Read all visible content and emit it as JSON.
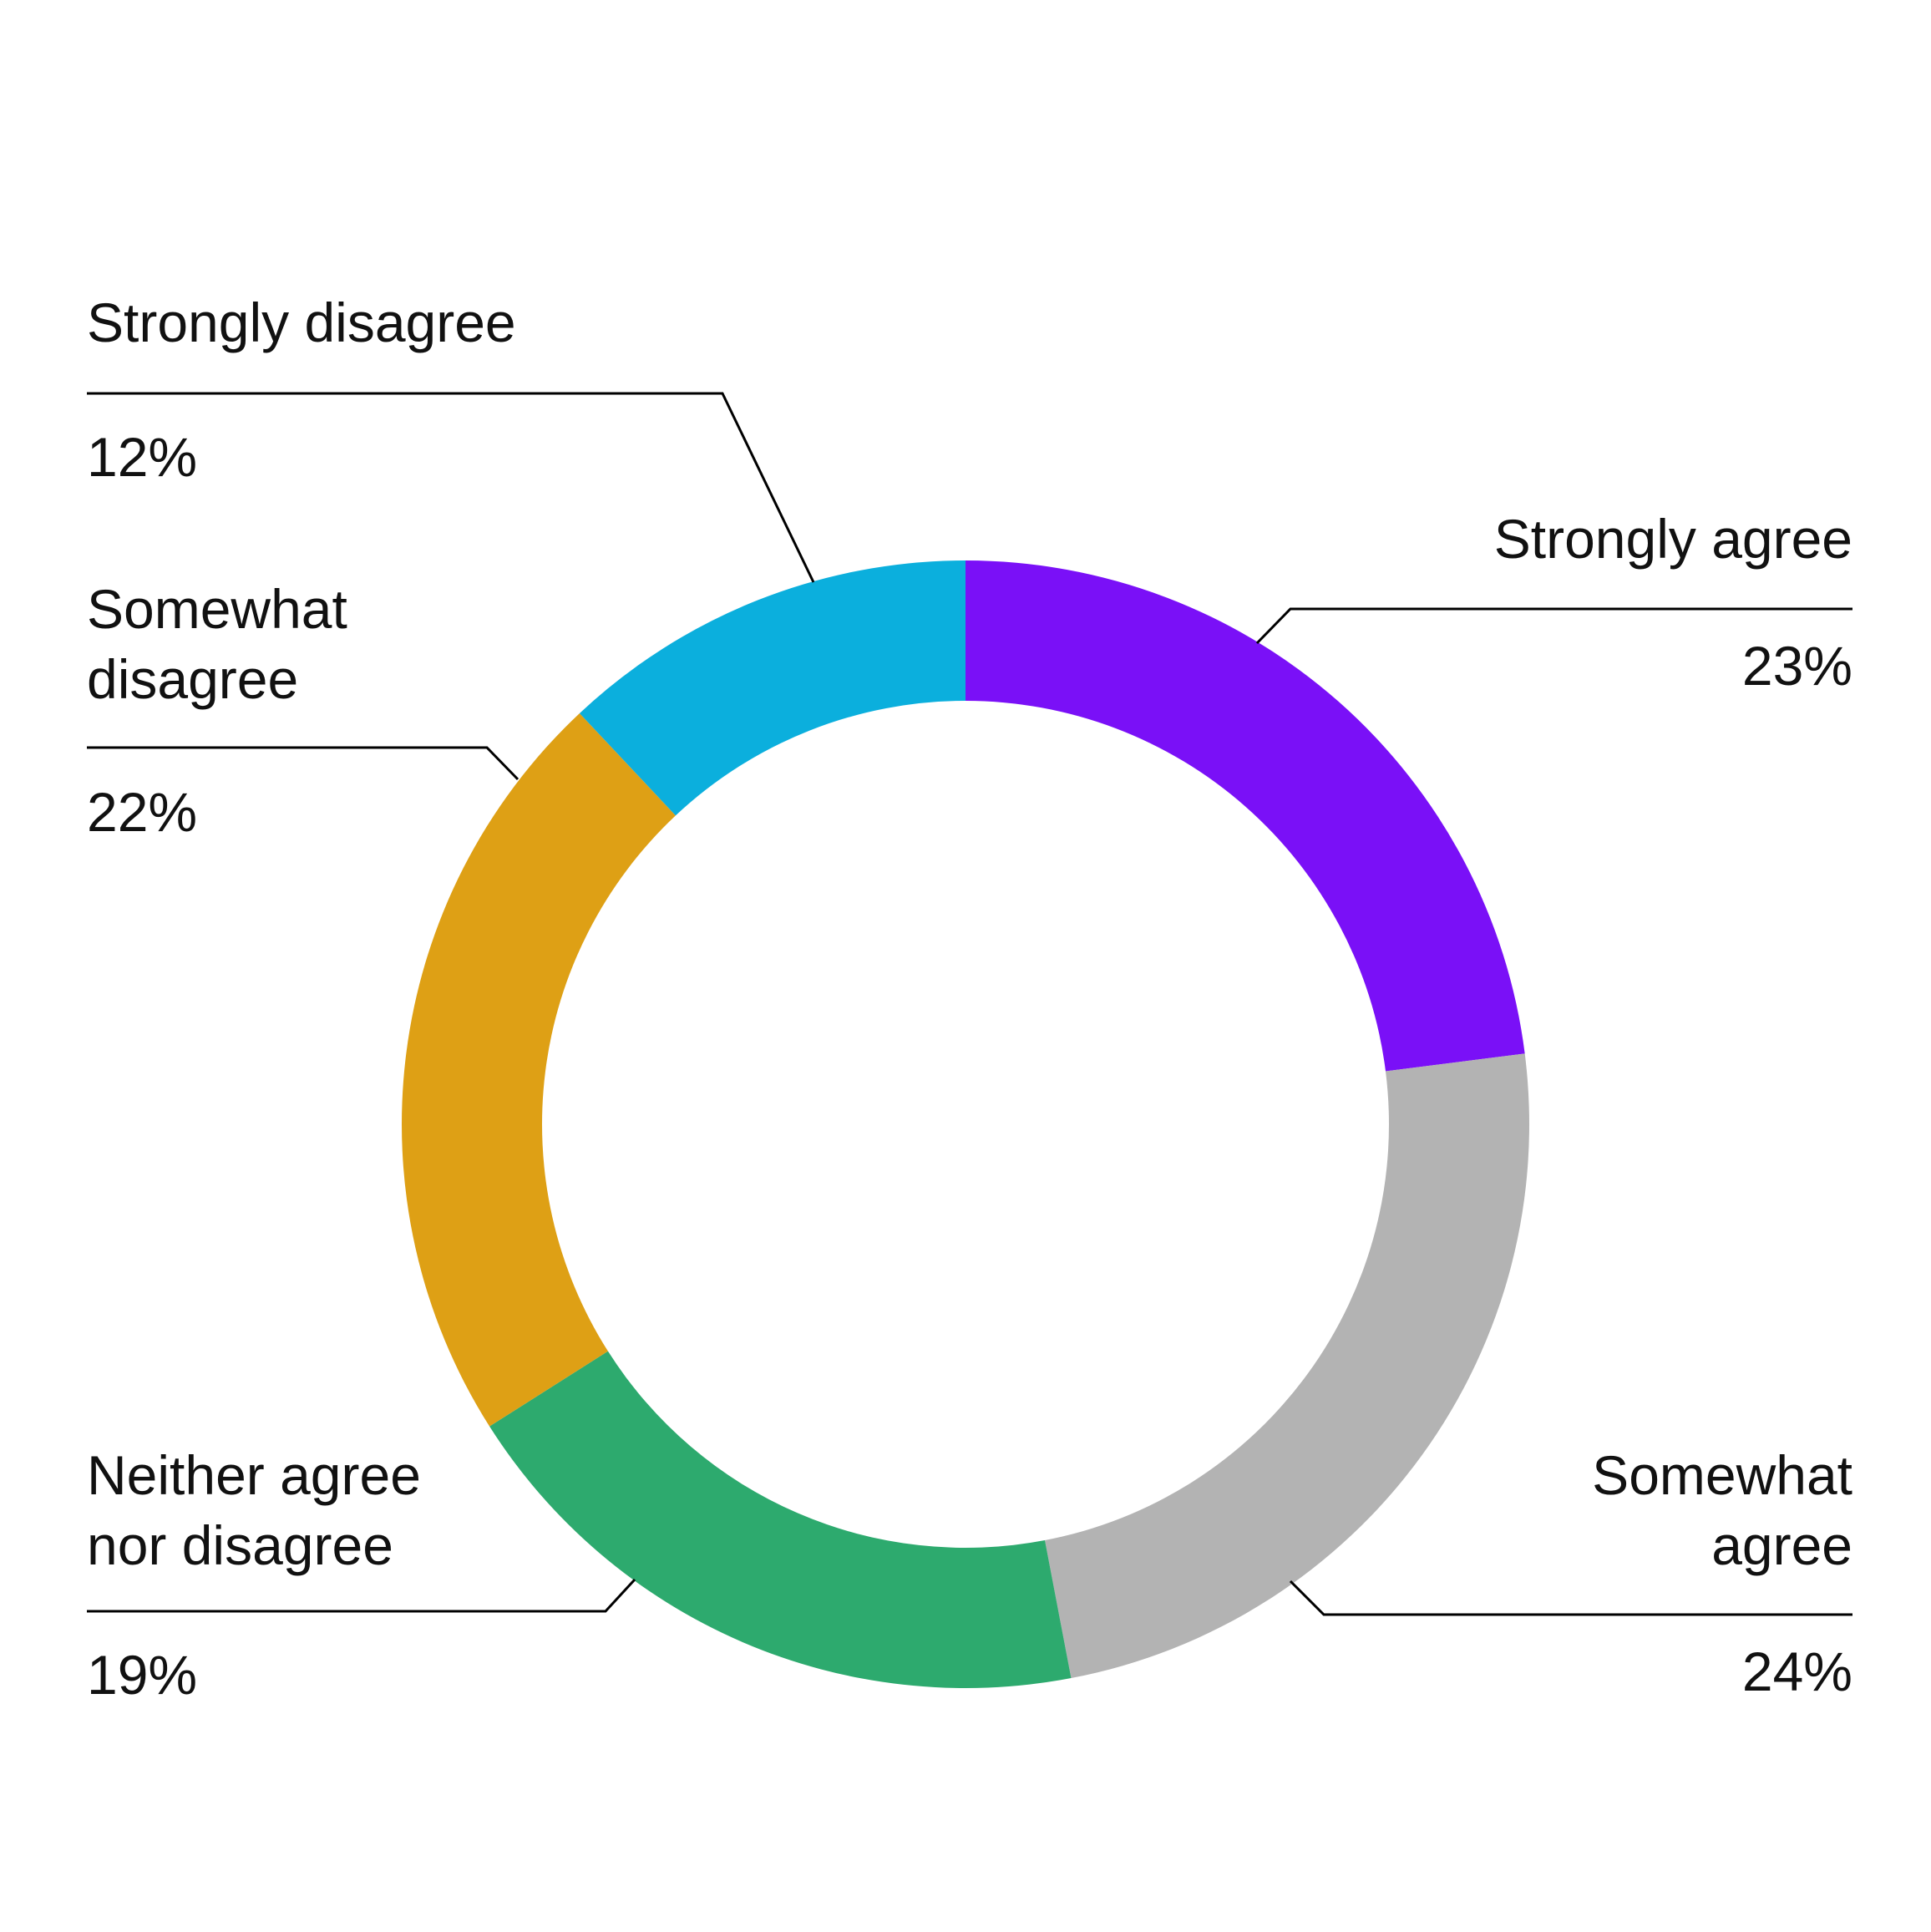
{
  "chart_data": {
    "type": "pie",
    "variant": "donut",
    "title": "",
    "slices": [
      {
        "label_lines": [
          "Strongly agree"
        ],
        "value": 23,
        "value_label": "23%",
        "color": "#7A10F7"
      },
      {
        "label_lines": [
          "Somewhat",
          "agree"
        ],
        "value": 24,
        "value_label": "24%",
        "color": "#B3B3B3"
      },
      {
        "label_lines": [
          "Neither agree",
          "nor disagree"
        ],
        "value": 19,
        "value_label": "19%",
        "color": "#2DAA6E"
      },
      {
        "label_lines": [
          "Somewhat",
          "disagree"
        ],
        "value": 22,
        "value_label": "22%",
        "color": "#DEA015"
      },
      {
        "label_lines": [
          "Strongly disagree"
        ],
        "value": 12,
        "value_label": "12%",
        "color": "#0BAFDD"
      }
    ],
    "start_angle": "12 o'clock",
    "direction": "clockwise",
    "legend": "none (callout labels with leader lines)",
    "grid": false
  }
}
